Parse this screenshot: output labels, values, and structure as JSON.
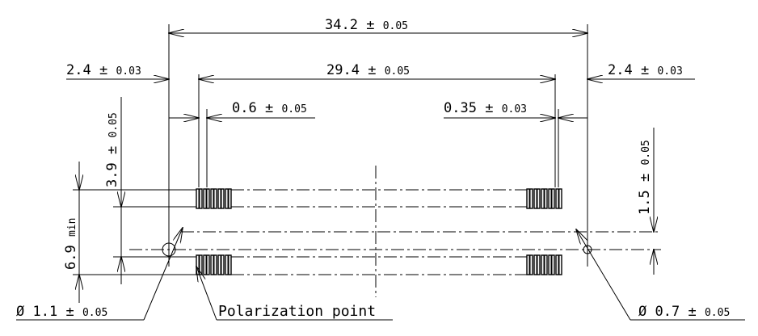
{
  "dimensions": {
    "overall_width": {
      "value": "34.2",
      "pm": "±",
      "tol": "0.05"
    },
    "row_span": {
      "value": "29.4",
      "pm": "±",
      "tol": "0.05"
    },
    "left_offset": {
      "value": "2.4",
      "pm": "±",
      "tol": "0.03"
    },
    "right_offset": {
      "value": "2.4",
      "pm": "±",
      "tol": "0.03"
    },
    "pin_width": {
      "value": "0.6",
      "pm": "±",
      "tol": "0.05"
    },
    "pin_gap": {
      "value": "0.35",
      "pm": "±",
      "tol": "0.03"
    },
    "row_pitch": {
      "value": "3.9",
      "pm": "±",
      "tol": "0.05"
    },
    "hole_offset": {
      "value": "1.5",
      "pm": "±",
      "tol": "0.05"
    },
    "min_depth": {
      "value": "6.9",
      "unit": "min"
    },
    "left_hole_dia": {
      "symbol": "Ø",
      "value": "1.1",
      "pm": "±",
      "tol": "0.05"
    },
    "right_hole_dia": {
      "symbol": "Ø",
      "value": "0.7",
      "pm": "±",
      "tol": "0.05"
    }
  },
  "labels": {
    "polarization": "Polarization point"
  }
}
